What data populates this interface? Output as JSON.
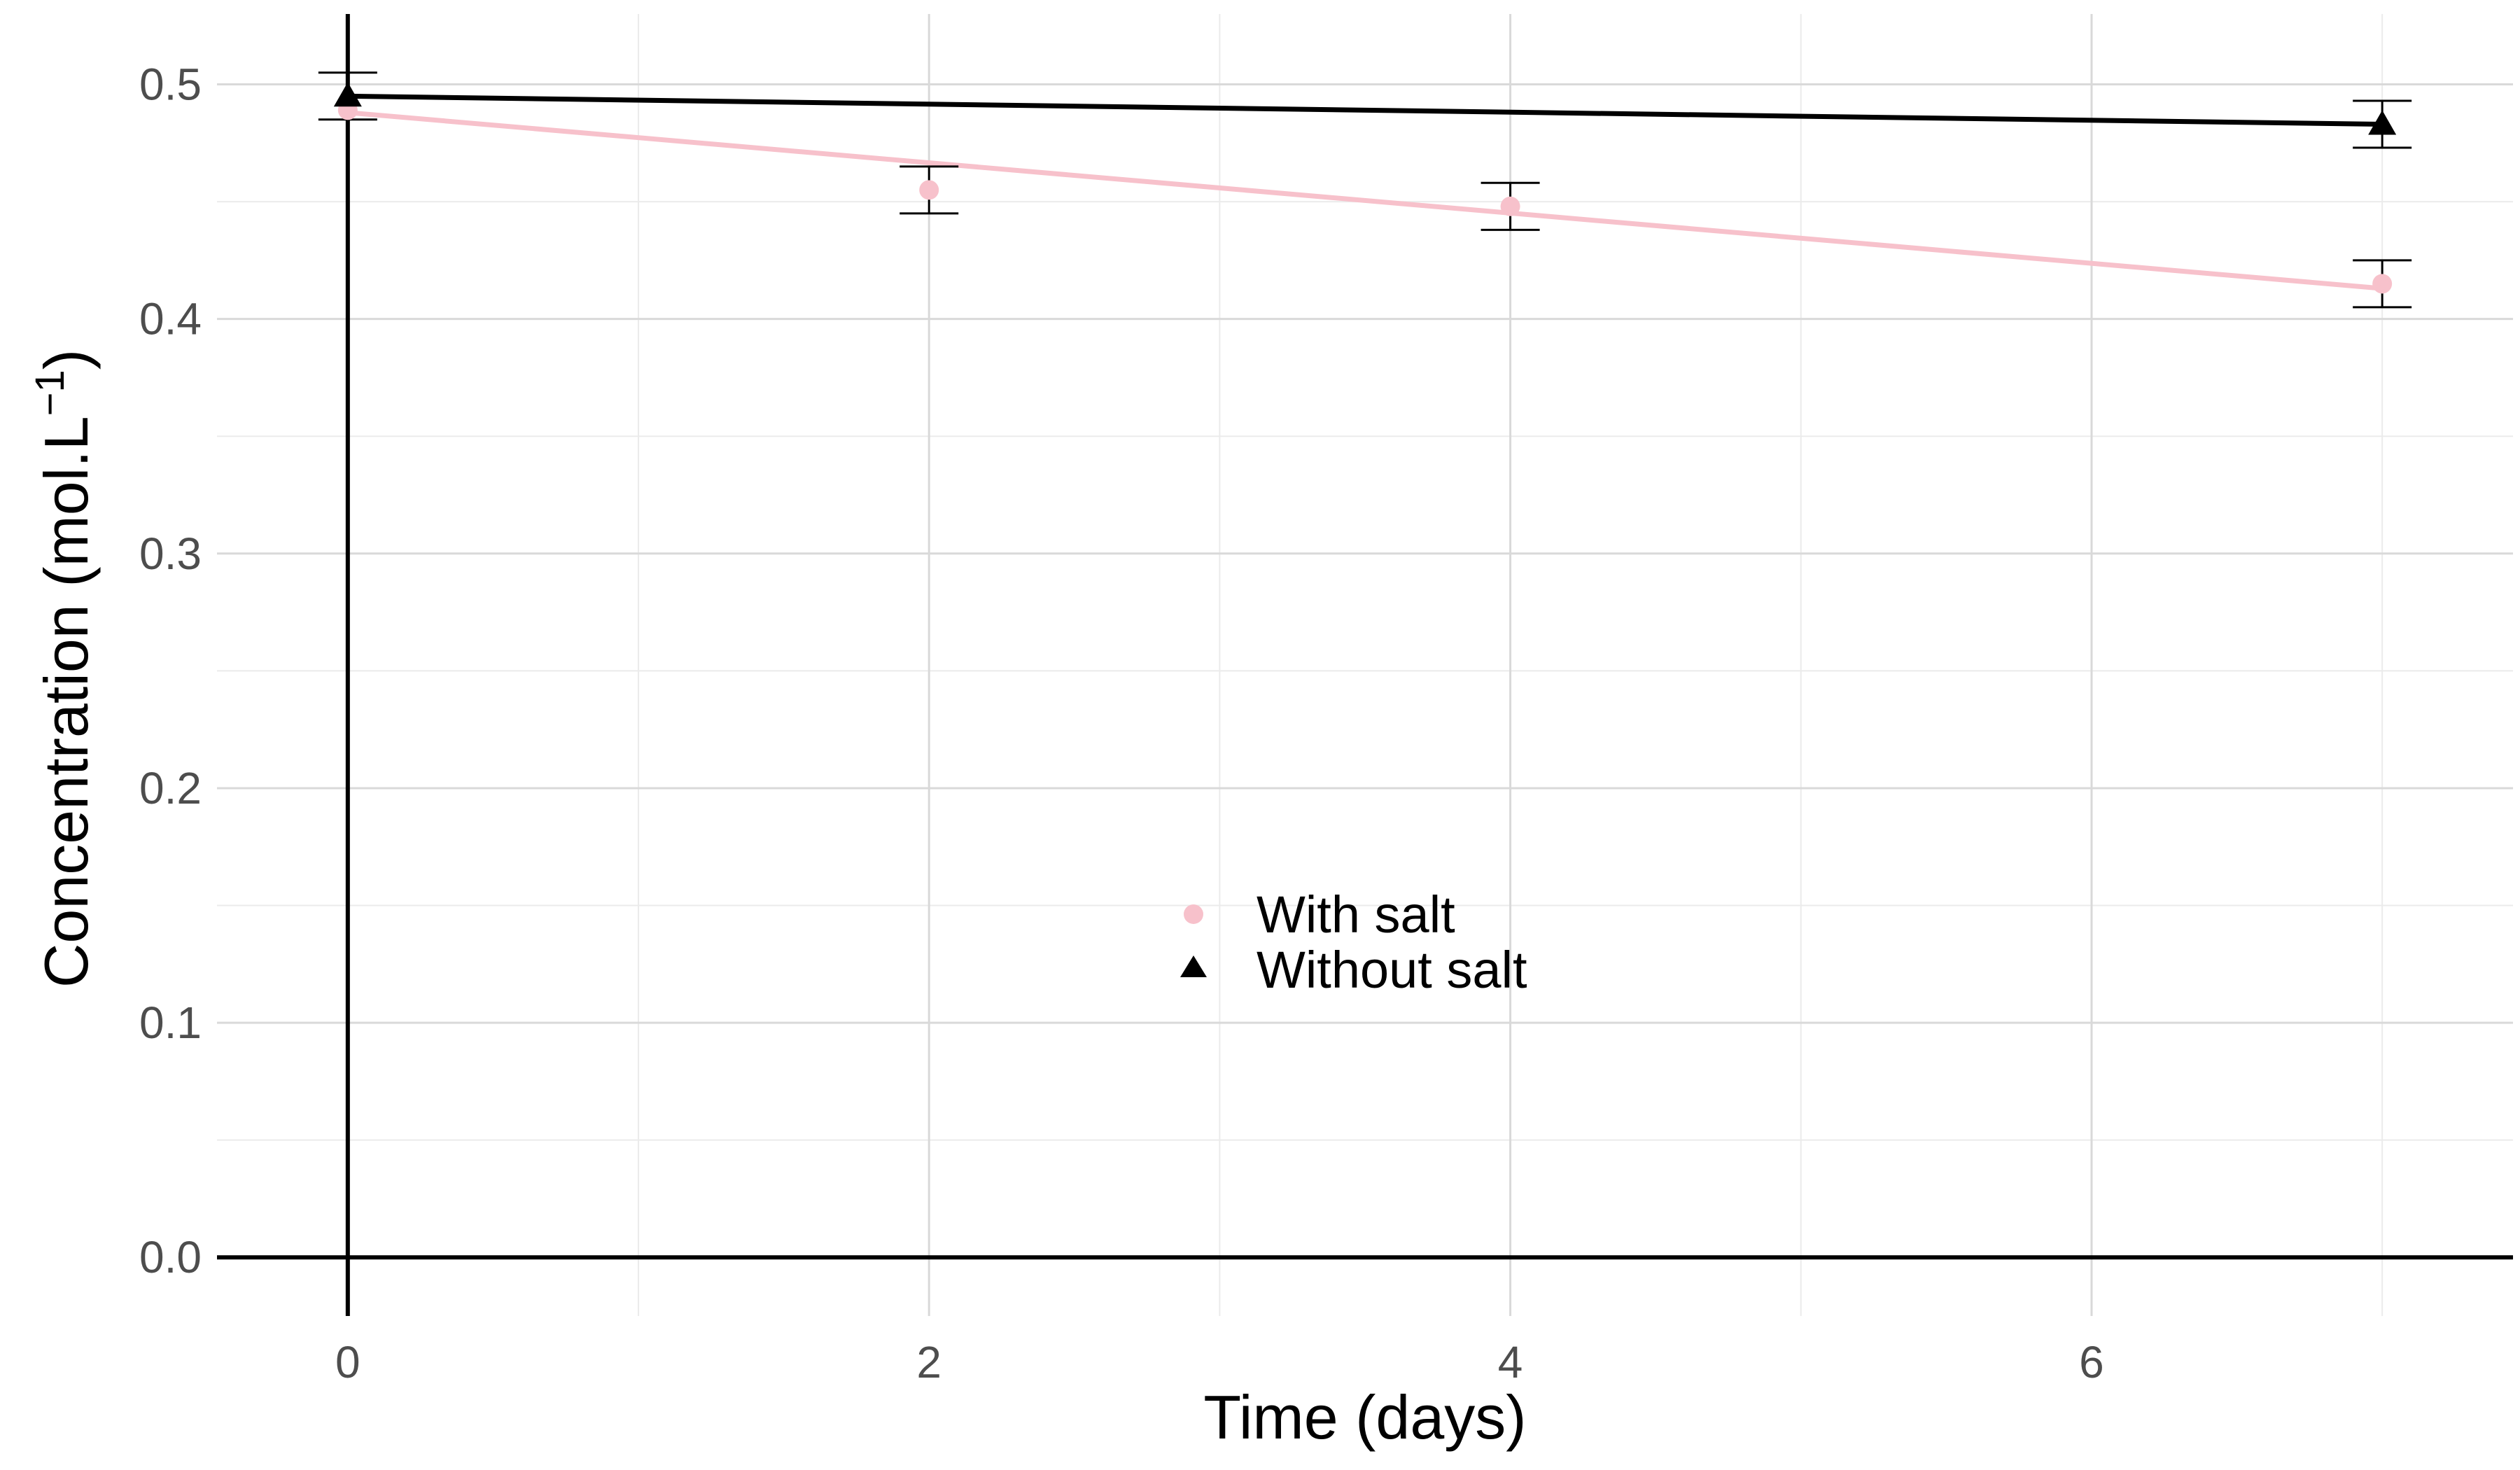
{
  "chart_data": {
    "type": "scatter",
    "title": "",
    "xlabel": "Time (days)",
    "ylabel_main": "Concentration (mol.L",
    "ylabel_sup": "−1",
    "ylabel_close": ")",
    "xlim": [
      -0.45,
      7.45
    ],
    "ylim": [
      -0.025,
      0.53
    ],
    "x_ticks": [
      0,
      2,
      4,
      6
    ],
    "x_tick_labels": [
      "0",
      "2",
      "4",
      "6"
    ],
    "y_ticks": [
      0.0,
      0.1,
      0.2,
      0.3,
      0.4,
      0.5
    ],
    "y_tick_labels": [
      "0.0",
      "0.1",
      "0.2",
      "0.3",
      "0.4",
      "0.5"
    ],
    "x_minor_ticks": [
      1,
      3,
      5,
      7
    ],
    "y_minor_ticks": [
      0.05,
      0.15,
      0.25,
      0.35,
      0.45
    ],
    "grid": true,
    "legend_position": "center-bottom inside plot",
    "series": [
      {
        "name": "With salt",
        "marker": "circle",
        "color": "#f7c1cb",
        "x": [
          0,
          2,
          4,
          7
        ],
        "y": [
          0.489,
          0.455,
          0.448,
          0.415
        ],
        "err": [
          0,
          0.01,
          0.01,
          0.01
        ],
        "fit": {
          "x": [
            0,
            7
          ],
          "y": [
            0.488,
            0.413
          ]
        }
      },
      {
        "name": "Without salt",
        "marker": "triangle",
        "color": "#000000",
        "x": [
          0,
          7
        ],
        "y": [
          0.495,
          0.483
        ],
        "err": [
          0.01,
          0.01
        ],
        "fit": {
          "x": [
            0,
            7
          ],
          "y": [
            0.495,
            0.483
          ]
        }
      }
    ]
  }
}
